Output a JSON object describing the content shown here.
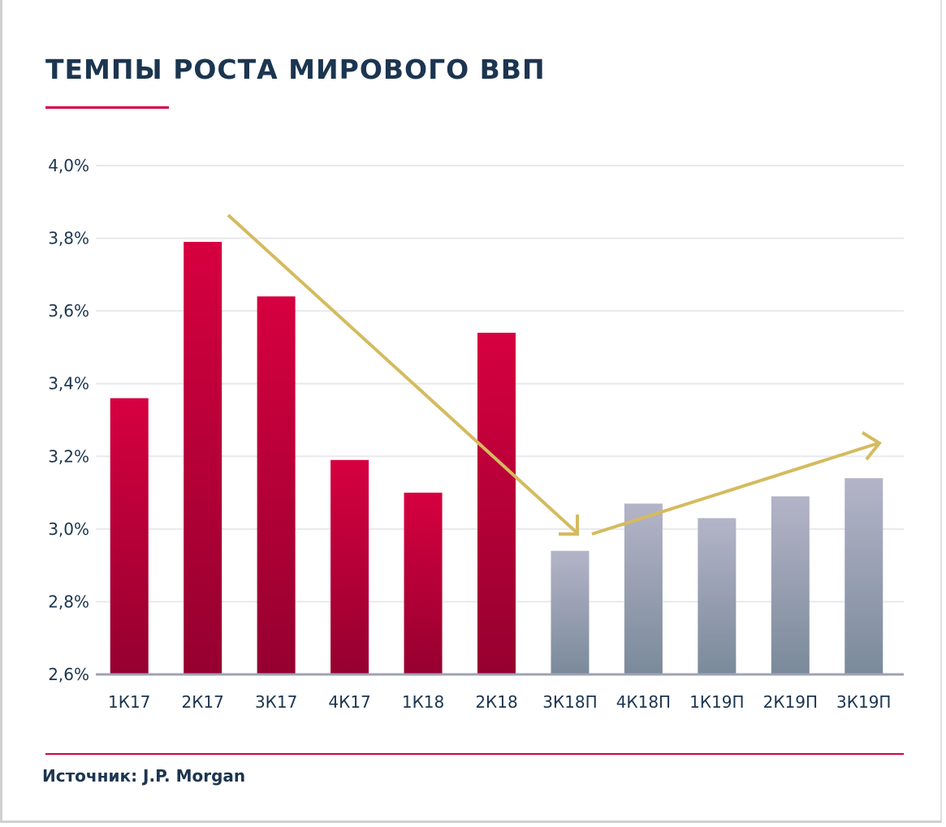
{
  "title": "ТЕМПЫ РОСТА МИРОВОГО ВВП",
  "source": "Источник: J.P. Morgan",
  "colors": {
    "actual_top": "#d6003f",
    "actual_bottom": "#950030",
    "forecast_top": "#b4b4c8",
    "forecast_bottom": "#7a8a9a",
    "arrow": "#d4bb5f",
    "accent": "#d6003f",
    "text": "#1c3550"
  },
  "chart_data": {
    "type": "bar",
    "title": "ТЕМПЫ РОСТА МИРОВОГО ВВП",
    "categories": [
      "1К17",
      "2К17",
      "3К17",
      "4К17",
      "1К18",
      "2К18",
      "3К18П",
      "4К18П",
      "1К19П",
      "2К19П",
      "3К19П"
    ],
    "values": [
      3.36,
      3.79,
      3.64,
      3.19,
      3.1,
      3.54,
      2.94,
      3.07,
      3.03,
      3.09,
      3.14
    ],
    "forecast": [
      false,
      false,
      false,
      false,
      false,
      false,
      true,
      true,
      true,
      true,
      true
    ],
    "ylim": [
      2.6,
      4.0
    ],
    "yticks": [
      2.6,
      2.8,
      3.0,
      3.2,
      3.4,
      3.6,
      3.8,
      4.0
    ],
    "ytick_labels": [
      "2,6%",
      "2,8%",
      "3,0%",
      "3,2%",
      "3,4%",
      "3,6%",
      "3,8%",
      "4,0%"
    ],
    "grid": true,
    "annotations": [
      {
        "type": "arrow",
        "description": "downtrend",
        "from_category": "2К17",
        "to_category": "3К18П"
      },
      {
        "type": "arrow",
        "description": "uptrend",
        "from_category": "3К18П",
        "to_category": "3К19П"
      }
    ]
  }
}
